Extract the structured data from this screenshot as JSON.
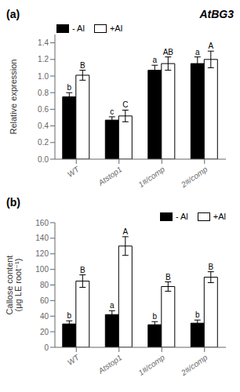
{
  "chart_data": [
    {
      "type": "bar",
      "title": "AtBG3",
      "annotation": "(a)",
      "ylabel": "Relative expression",
      "categories": [
        "WT",
        "Atstop1",
        "1#/comp",
        "2#/comp"
      ],
      "series": [
        {
          "name": "- Al",
          "color": "#000000",
          "values": [
            0.75,
            0.47,
            1.07,
            1.15
          ],
          "errors": [
            0.05,
            0.04,
            0.06,
            0.08
          ],
          "labels": [
            "b",
            "c",
            "a",
            "a"
          ]
        },
        {
          "name": "+Al",
          "color": "#ffffff",
          "values": [
            1.01,
            0.52,
            1.15,
            1.2
          ],
          "errors": [
            0.06,
            0.07,
            0.08,
            0.1
          ],
          "labels": [
            "B",
            "C",
            "AB",
            "A"
          ]
        }
      ],
      "ylim": [
        0,
        1.5
      ],
      "yticks": [
        {
          "value": 0.0,
          "label": "0.0"
        },
        {
          "value": 0.2,
          "label": "0.2"
        },
        {
          "value": 0.4,
          "label": "0.4"
        },
        {
          "value": 0.6,
          "label": "0.6"
        },
        {
          "value": 0.8,
          "label": "0.8"
        },
        {
          "value": 1.0,
          "label": "1.0"
        },
        {
          "value": 1.2,
          "label": "1.2"
        },
        {
          "value": 1.4,
          "label": "1.4"
        }
      ],
      "legend": "upper left",
      "grid": false
    },
    {
      "type": "bar",
      "annotation": "(b)",
      "ylabel": "Callose content\n(μg LE root⁻¹)",
      "categories": [
        "WT",
        "Atstop1",
        "1#/comp",
        "2#/comp"
      ],
      "series": [
        {
          "name": "- Al",
          "color": "#000000",
          "values": [
            30,
            42,
            29,
            31
          ],
          "errors": [
            4,
            5,
            4,
            4
          ],
          "labels": [
            "b",
            "a",
            "b",
            "b"
          ]
        },
        {
          "name": "+Al",
          "color": "#ffffff",
          "values": [
            85,
            130,
            78,
            90
          ],
          "errors": [
            8,
            12,
            6,
            7
          ],
          "labels": [
            "B",
            "A",
            "B",
            "B"
          ]
        }
      ],
      "ylim": [
        0,
        160
      ],
      "yticks": [
        0,
        20,
        40,
        60,
        80,
        100,
        120,
        140,
        160
      ],
      "legend": "upper right",
      "grid": false
    }
  ]
}
